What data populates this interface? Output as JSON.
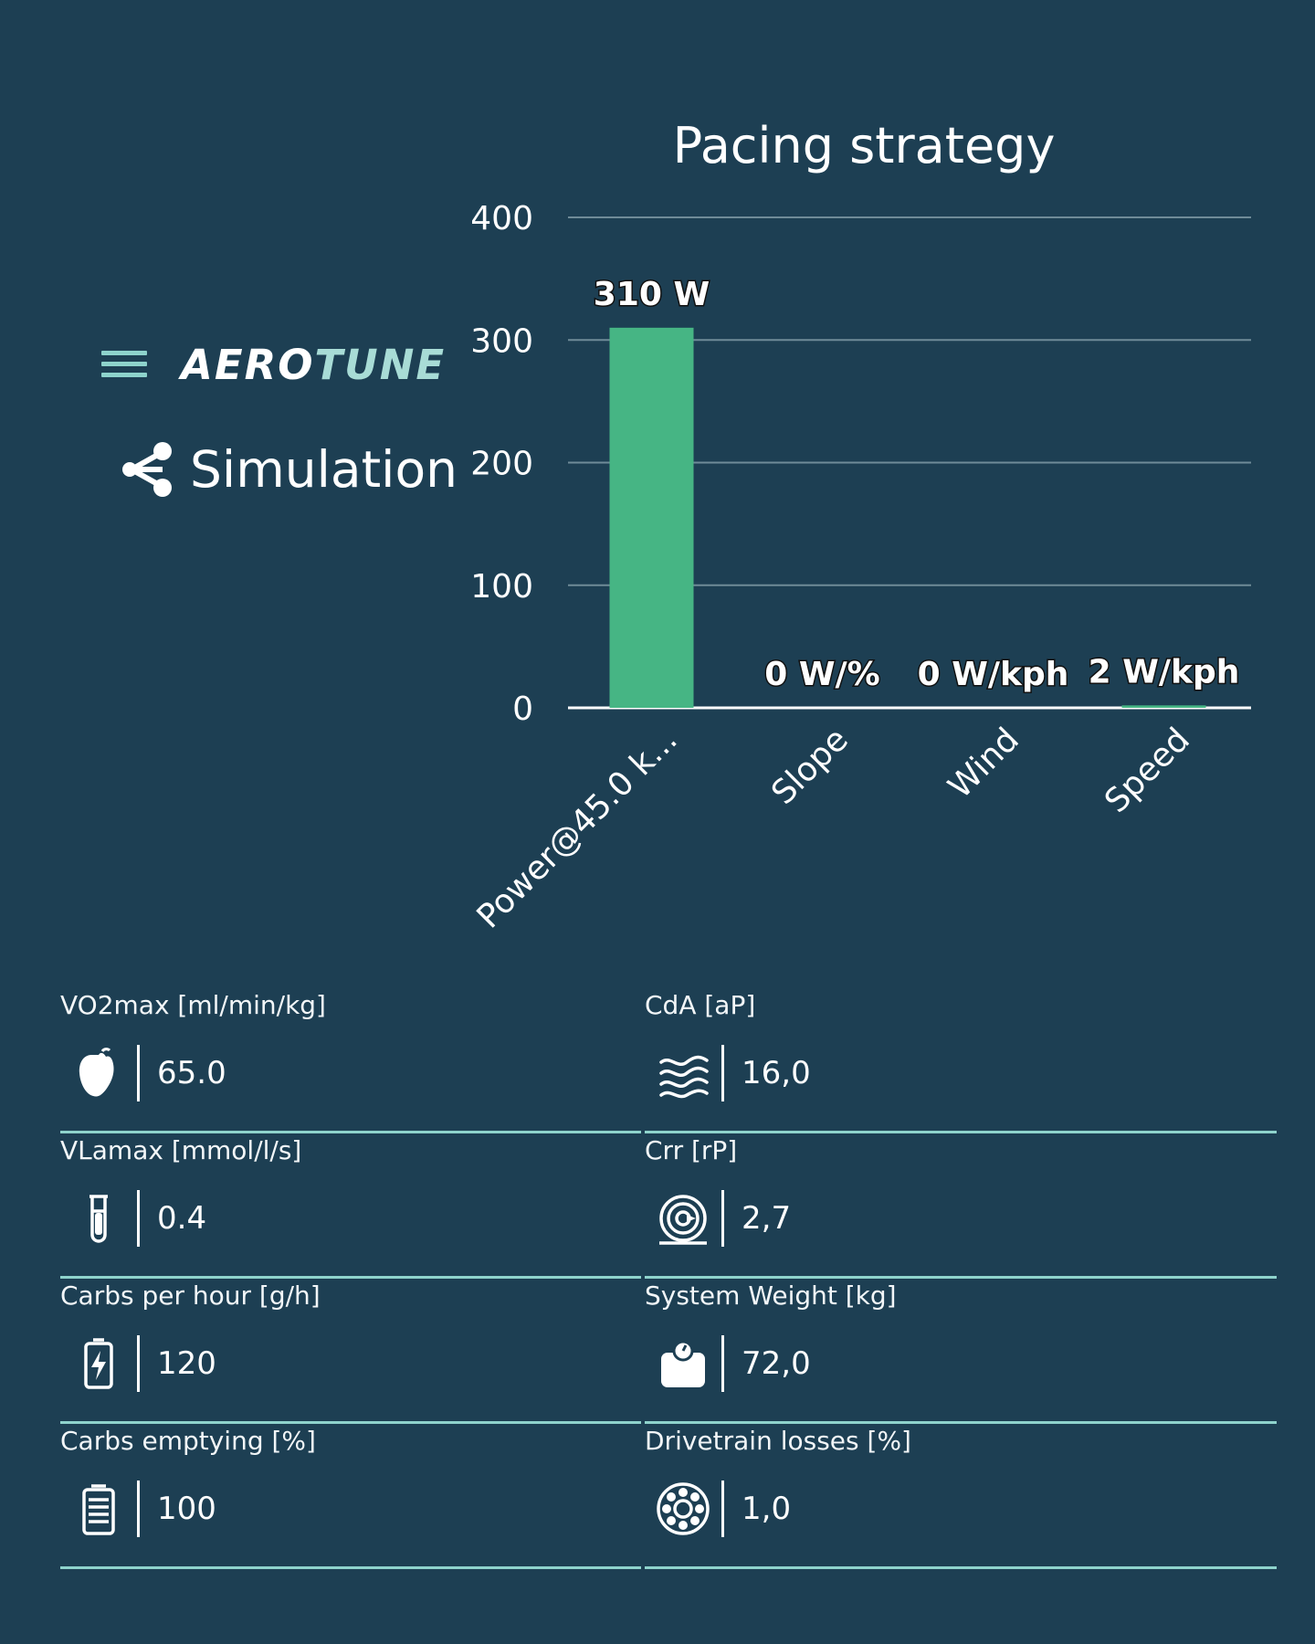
{
  "brand": {
    "logo_part1": "AERO",
    "logo_part2": "TUNE",
    "menu_icon": "hamburger-menu-icon",
    "accent_color": "#8ed3cc"
  },
  "section": {
    "title": "Simulation",
    "icon": "share-nodes-icon"
  },
  "chart_data": {
    "type": "bar",
    "title": "Pacing strategy",
    "categories": [
      "Power@45.0 k...",
      "Slope",
      "Wind",
      "Speed"
    ],
    "values": [
      310,
      0,
      0,
      2
    ],
    "data_labels": [
      "310 W",
      "0 W/%",
      "0 W/kph",
      "2 W/kph"
    ],
    "yticks": [
      0,
      100,
      200,
      300,
      400
    ],
    "ylim": [
      0,
      400
    ],
    "xlabel": "",
    "ylabel": "",
    "grid": true,
    "bar_color": "#46b584"
  },
  "metrics": [
    {
      "label": "VO2max [ml/min/kg]",
      "value": "65.0",
      "icon": "heart-icon"
    },
    {
      "label": "CdA [aP]",
      "value": "16,0",
      "icon": "wind-waves-icon"
    },
    {
      "label": "VLamax [mmol/l/s]",
      "value": "0.4",
      "icon": "test-tube-icon"
    },
    {
      "label": "Crr [rP]",
      "value": "2,7",
      "icon": "tire-icon"
    },
    {
      "label": "Carbs per hour [g/h]",
      "value": "120",
      "icon": "battery-charging-icon"
    },
    {
      "label": "System Weight [kg]",
      "value": "72,0",
      "icon": "weight-scale-icon"
    },
    {
      "label": "Carbs emptying [%]",
      "value": "100",
      "icon": "battery-full-icon"
    },
    {
      "label": "Drivetrain losses [%]",
      "value": "1,0",
      "icon": "bearing-icon"
    }
  ]
}
